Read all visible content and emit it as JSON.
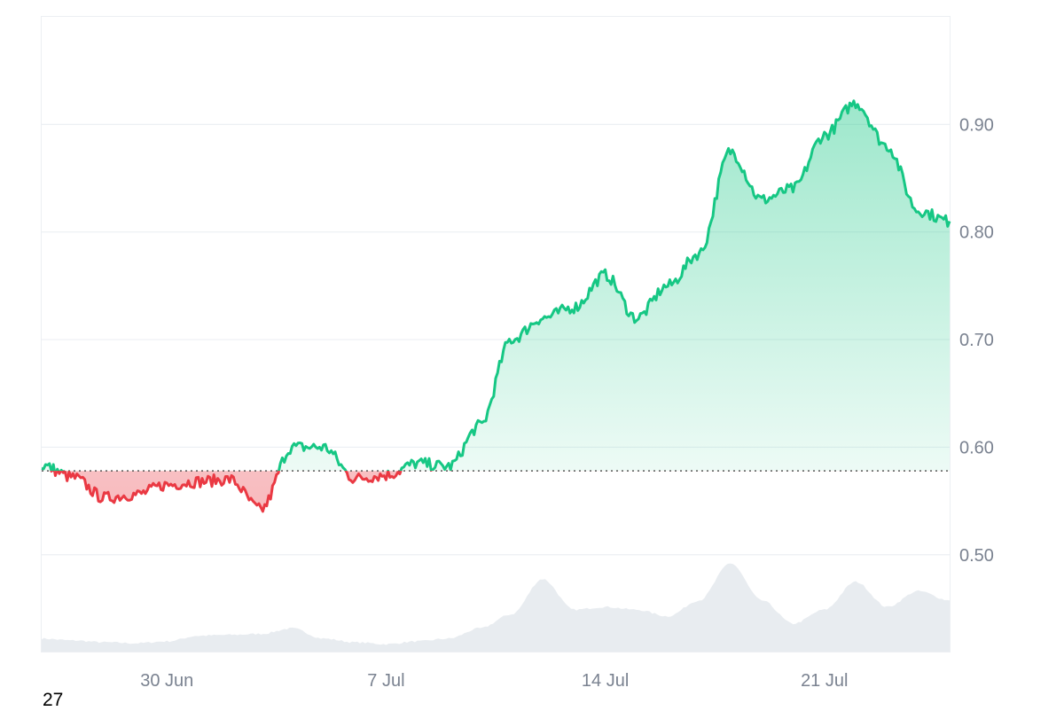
{
  "footer_text": "27",
  "chart_data": {
    "type": "area",
    "title": "",
    "xlabel": "",
    "ylabel": "",
    "ylim": [
      0.41,
      1.0
    ],
    "baseline": 0.578,
    "x_ticks": [
      "30 Jun",
      "7 Jul",
      "14 Jul",
      "21 Jul"
    ],
    "y_ticks": [
      "0.50",
      "0.60",
      "0.70",
      "0.80",
      "0.90"
    ],
    "grid": true,
    "colors": {
      "up": "#16c784",
      "down": "#ea3943",
      "volume": "#e8ecf0",
      "grid": "#eceff3",
      "axis_text": "#7a8290"
    },
    "price_series": {
      "x": [
        "2024-06-26",
        "2024-06-27",
        "2024-06-28",
        "2024-06-29",
        "2024-06-30",
        "2024-07-01",
        "2024-07-02",
        "2024-07-03",
        "2024-07-04",
        "2024-07-05",
        "2024-07-06",
        "2024-07-07",
        "2024-07-08",
        "2024-07-09",
        "2024-07-10",
        "2024-07-11",
        "2024-07-12",
        "2024-07-13",
        "2024-07-14",
        "2024-07-15",
        "2024-07-16",
        "2024-07-17",
        "2024-07-18",
        "2024-07-19",
        "2024-07-20",
        "2024-07-21",
        "2024-07-22",
        "2024-07-23",
        "2024-07-24",
        "2024-07-25"
      ],
      "y": [
        0.583,
        0.572,
        0.553,
        0.556,
        0.565,
        0.568,
        0.57,
        0.542,
        0.6,
        0.6,
        0.571,
        0.574,
        0.585,
        0.582,
        0.62,
        0.7,
        0.72,
        0.73,
        0.76,
        0.72,
        0.75,
        0.78,
        0.875,
        0.83,
        0.84,
        0.89,
        0.92,
        0.88,
        0.82,
        0.81
      ]
    },
    "volume_series": {
      "x": [
        "2024-06-26",
        "2024-06-27",
        "2024-06-28",
        "2024-06-29",
        "2024-06-30",
        "2024-07-01",
        "2024-07-02",
        "2024-07-03",
        "2024-07-04",
        "2024-07-05",
        "2024-07-06",
        "2024-07-07",
        "2024-07-08",
        "2024-07-09",
        "2024-07-10",
        "2024-07-11",
        "2024-07-12",
        "2024-07-13",
        "2024-07-14",
        "2024-07-15",
        "2024-07-16",
        "2024-07-17",
        "2024-07-18",
        "2024-07-19",
        "2024-07-20",
        "2024-07-21",
        "2024-07-22",
        "2024-07-23",
        "2024-07-24",
        "2024-07-25"
      ],
      "relative": [
        0.14,
        0.12,
        0.1,
        0.09,
        0.11,
        0.17,
        0.18,
        0.19,
        0.25,
        0.14,
        0.1,
        0.08,
        0.11,
        0.14,
        0.25,
        0.4,
        0.78,
        0.45,
        0.48,
        0.45,
        0.38,
        0.55,
        0.95,
        0.55,
        0.3,
        0.45,
        0.75,
        0.48,
        0.65,
        0.55
      ]
    }
  }
}
